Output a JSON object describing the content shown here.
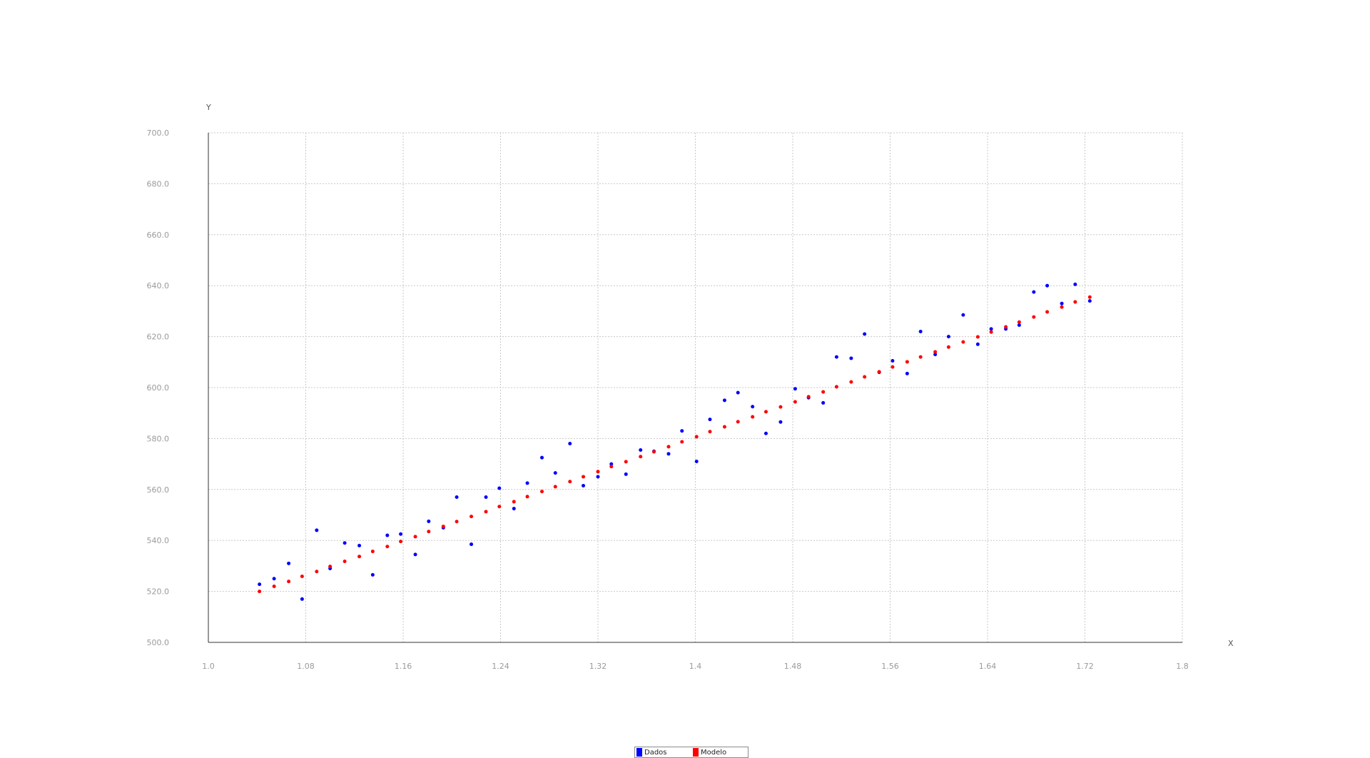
{
  "chart_data": {
    "type": "scatter",
    "title": "",
    "xlabel": "X",
    "ylabel": "Y",
    "xlim": [
      1.0,
      1.8
    ],
    "ylim": [
      500.0,
      700.0
    ],
    "x_ticks": [
      "1.0",
      "1.08",
      "1.16",
      "1.24",
      "1.32",
      "1.4",
      "1.48",
      "1.56",
      "1.64",
      "1.72",
      "1.8"
    ],
    "y_ticks": [
      "500.0",
      "520.0",
      "540.0",
      "560.0",
      "580.0",
      "600.0",
      "620.0",
      "640.0",
      "660.0",
      "680.0",
      "700.0"
    ],
    "grid": true,
    "legend_position": "bottom-center",
    "series": [
      {
        "name": "Dados",
        "color": "#0000ff",
        "points": [
          [
            1.042,
            522.8
          ],
          [
            1.054,
            525.0
          ],
          [
            1.066,
            531.0
          ],
          [
            1.077,
            517.0
          ],
          [
            1.089,
            544.0
          ],
          [
            1.1,
            529.0
          ],
          [
            1.112,
            539.0
          ],
          [
            1.124,
            538.0
          ],
          [
            1.135,
            526.5
          ],
          [
            1.147,
            542.0
          ],
          [
            1.158,
            542.5
          ],
          [
            1.17,
            534.5
          ],
          [
            1.181,
            547.5
          ],
          [
            1.193,
            545.0
          ],
          [
            1.204,
            557.0
          ],
          [
            1.216,
            538.5
          ],
          [
            1.228,
            557.0
          ],
          [
            1.239,
            560.5
          ],
          [
            1.251,
            552.5
          ],
          [
            1.262,
            562.5
          ],
          [
            1.274,
            572.5
          ],
          [
            1.285,
            566.5
          ],
          [
            1.297,
            578.0
          ],
          [
            1.308,
            561.5
          ],
          [
            1.32,
            565.0
          ],
          [
            1.331,
            570.0
          ],
          [
            1.343,
            566.0
          ],
          [
            1.355,
            575.5
          ],
          [
            1.366,
            575.0
          ],
          [
            1.378,
            574.0
          ],
          [
            1.389,
            583.0
          ],
          [
            1.401,
            571.0
          ],
          [
            1.412,
            587.5
          ],
          [
            1.424,
            595.0
          ],
          [
            1.435,
            598.0
          ],
          [
            1.447,
            592.5
          ],
          [
            1.458,
            582.0
          ],
          [
            1.47,
            586.5
          ],
          [
            1.482,
            599.5
          ],
          [
            1.493,
            596.0
          ],
          [
            1.505,
            594.0
          ],
          [
            1.516,
            612.0
          ],
          [
            1.528,
            611.5
          ],
          [
            1.539,
            621.0
          ],
          [
            1.551,
            606.0
          ],
          [
            1.562,
            610.5
          ],
          [
            1.574,
            605.5
          ],
          [
            1.585,
            622.0
          ],
          [
            1.597,
            613.0
          ],
          [
            1.608,
            620.0
          ],
          [
            1.62,
            628.5
          ],
          [
            1.632,
            617.0
          ],
          [
            1.643,
            623.0
          ],
          [
            1.655,
            623.0
          ],
          [
            1.666,
            624.5
          ],
          [
            1.678,
            637.5
          ],
          [
            1.689,
            640.0
          ],
          [
            1.701,
            633.0
          ],
          [
            1.712,
            640.5
          ],
          [
            1.724,
            634.0
          ]
        ]
      },
      {
        "name": "Modelo",
        "color": "#ff0000",
        "points": [
          [
            1.042,
            520.0
          ],
          [
            1.054,
            522.0
          ],
          [
            1.066,
            523.9
          ],
          [
            1.077,
            525.9
          ],
          [
            1.089,
            527.8
          ],
          [
            1.1,
            529.8
          ],
          [
            1.112,
            531.8
          ],
          [
            1.124,
            533.7
          ],
          [
            1.135,
            535.7
          ],
          [
            1.147,
            537.6
          ],
          [
            1.158,
            539.6
          ],
          [
            1.17,
            541.5
          ],
          [
            1.181,
            543.5
          ],
          [
            1.193,
            545.5
          ],
          [
            1.204,
            547.4
          ],
          [
            1.216,
            549.4
          ],
          [
            1.228,
            551.3
          ],
          [
            1.239,
            553.3
          ],
          [
            1.251,
            555.2
          ],
          [
            1.262,
            557.2
          ],
          [
            1.274,
            559.2
          ],
          [
            1.285,
            561.1
          ],
          [
            1.297,
            563.1
          ],
          [
            1.308,
            565.0
          ],
          [
            1.32,
            567.0
          ],
          [
            1.331,
            569.0
          ],
          [
            1.343,
            570.9
          ],
          [
            1.355,
            572.9
          ],
          [
            1.366,
            574.8
          ],
          [
            1.378,
            576.8
          ],
          [
            1.389,
            578.7
          ],
          [
            1.401,
            580.7
          ],
          [
            1.412,
            582.7
          ],
          [
            1.424,
            584.6
          ],
          [
            1.435,
            586.6
          ],
          [
            1.447,
            588.5
          ],
          [
            1.458,
            590.5
          ],
          [
            1.47,
            592.4
          ],
          [
            1.482,
            594.4
          ],
          [
            1.493,
            596.4
          ],
          [
            1.505,
            598.3
          ],
          [
            1.516,
            600.3
          ],
          [
            1.528,
            602.2
          ],
          [
            1.539,
            604.2
          ],
          [
            1.551,
            606.2
          ],
          [
            1.562,
            608.1
          ],
          [
            1.574,
            610.1
          ],
          [
            1.585,
            612.0
          ],
          [
            1.597,
            614.0
          ],
          [
            1.608,
            615.9
          ],
          [
            1.62,
            617.9
          ],
          [
            1.632,
            619.9
          ],
          [
            1.643,
            621.8
          ],
          [
            1.655,
            623.8
          ],
          [
            1.666,
            625.7
          ],
          [
            1.678,
            627.7
          ],
          [
            1.689,
            629.7
          ],
          [
            1.701,
            631.6
          ],
          [
            1.712,
            633.6
          ],
          [
            1.724,
            635.5
          ]
        ]
      }
    ]
  }
}
